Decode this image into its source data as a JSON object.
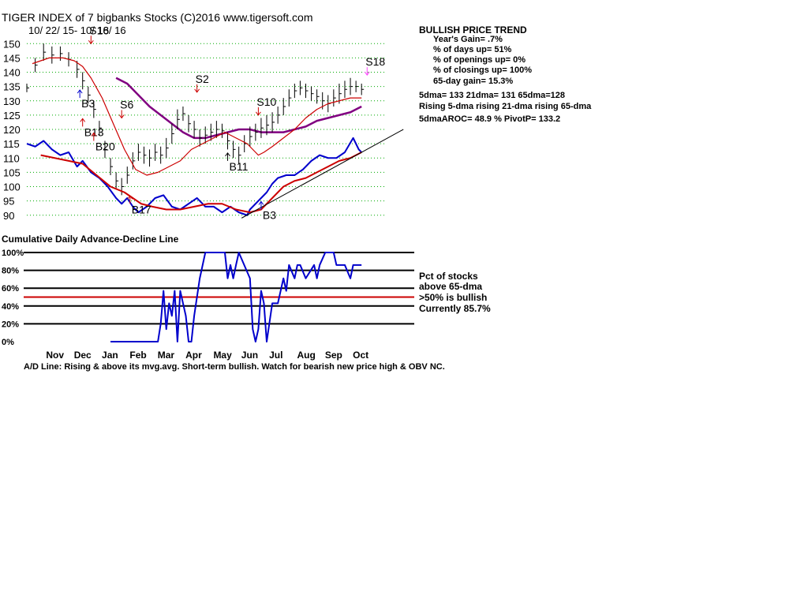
{
  "title": "TIGER INDEX of  7 bigbanks Stocks  (C)2016  www.tigersoft.com",
  "date_range": "10/ 22/ 15- 10/ 18/ 16",
  "trend": {
    "heading": "BULLISH PRICE TREND",
    "lines": [
      "Year's Gain= .7%",
      "% of days up= 51%",
      "% of openings up= 0%",
      "% of closings up= 100%",
      "65-day gain= 15.3%"
    ],
    "dma_line": "5dma= 133 21dma= 131 65dma=128",
    "rising_line": "Rising 5-dma rising 21-dma rising 65-dma",
    "aroc_line": "5dmaAROC= 48.9 %  PivotP= 133.2"
  },
  "lower_panel_title": "Cumulative Daily Advance-Decline Line",
  "lower_legend": [
    "Pct of stocks",
    "above 65-dma",
    ">50% is bullish",
    "Currently  85.7%"
  ],
  "footer": "A/D Line: Rising & above its mvg.avg. Short-term bullish. Watch for bearish new price high & OBV NC.",
  "colors": {
    "price": "#000000",
    "ma21": "#cc0000",
    "ma65": "#800080",
    "ad_line": "#0000cc",
    "ad_ma": "#cc0000",
    "grid": "#00aa00",
    "arrow_red": "#cc0000",
    "arrow_blue": "#0000cc",
    "arrow_black": "#000000",
    "arrow_pink": "#ff44ff",
    "bullish_line": "#cc0000"
  },
  "chart_data": [
    {
      "type": "line",
      "title": "TIGER INDEX of 7 bigbanks Stocks",
      "ylim": [
        88,
        152
      ],
      "yticks": [
        150,
        145,
        140,
        135,
        130,
        125,
        120,
        115,
        110,
        105,
        100,
        95,
        90
      ],
      "month_labels": [
        "Nov",
        "Dec",
        "Jan",
        "Feb",
        "Mar",
        "Apr",
        "May",
        "Jun",
        "Jul",
        "Aug",
        "Sep",
        "Oct"
      ],
      "month_pos": [
        1.0,
        2.0,
        3.0,
        4.0,
        5.0,
        6.0,
        7.0,
        8.0,
        9.0,
        10.0,
        11.0,
        12.0
      ],
      "xlim": [
        0.0,
        12.9
      ],
      "series": [
        {
          "name": "Price (daily high-low bars)",
          "kind": "bars",
          "x": [
            0.0,
            0.3,
            0.6,
            0.9,
            1.2,
            1.5,
            1.8,
            2.0,
            2.2,
            2.4,
            2.6,
            2.8,
            3.0,
            3.2,
            3.4,
            3.6,
            3.8,
            4.0,
            4.2,
            4.4,
            4.6,
            4.8,
            5.0,
            5.2,
            5.4,
            5.6,
            5.8,
            6.0,
            6.2,
            6.4,
            6.6,
            6.8,
            7.0,
            7.2,
            7.4,
            7.6,
            7.8,
            8.0,
            8.2,
            8.4,
            8.6,
            8.8,
            9.0,
            9.2,
            9.4,
            9.6,
            9.8,
            10.0,
            10.2,
            10.4,
            10.6,
            10.8,
            11.0,
            11.2,
            11.4,
            11.6,
            11.8,
            12.0
          ],
          "low": [
            133,
            140,
            144,
            143,
            144,
            142,
            138,
            134,
            129,
            124,
            118,
            110,
            104,
            99,
            97,
            101,
            106,
            109,
            108,
            107,
            109,
            108,
            110,
            115,
            120,
            123,
            119,
            117,
            114,
            115,
            116,
            117,
            117,
            113,
            110,
            108,
            112,
            114,
            116,
            117,
            118,
            119,
            122,
            125,
            128,
            131,
            132,
            131,
            130,
            129,
            127,
            126,
            128,
            129,
            131,
            132,
            133,
            132
          ],
          "high": [
            136,
            145,
            150,
            149,
            149,
            147,
            144,
            140,
            135,
            130,
            123,
            116,
            110,
            105,
            103,
            107,
            112,
            115,
            114,
            113,
            115,
            114,
            117,
            122,
            127,
            128,
            125,
            123,
            120,
            121,
            122,
            123,
            122,
            119,
            116,
            114,
            118,
            121,
            122,
            124,
            125,
            126,
            128,
            131,
            134,
            136,
            137,
            136,
            135,
            134,
            133,
            132,
            134,
            136,
            137,
            138,
            137,
            136
          ]
        },
        {
          "name": "21-dma",
          "kind": "line",
          "color_key": "ma21",
          "x": [
            0.2,
            0.8,
            1.3,
            1.7,
            2.0,
            2.3,
            2.7,
            3.1,
            3.5,
            3.9,
            4.3,
            4.7,
            5.1,
            5.5,
            5.9,
            6.3,
            6.7,
            7.1,
            7.5,
            7.9,
            8.1,
            8.3,
            8.5,
            8.8,
            9.2,
            9.6,
            10.0,
            10.4,
            10.8,
            11.2,
            11.6,
            12.0
          ],
          "y": [
            143,
            145,
            145,
            144,
            142,
            138,
            131,
            122,
            113,
            106,
            104,
            105,
            107,
            109,
            113,
            115,
            117,
            119,
            117,
            115,
            113,
            111,
            112,
            114,
            117,
            120,
            124,
            127,
            129,
            130,
            131,
            131
          ]
        },
        {
          "name": "65-dma",
          "kind": "line",
          "color_key": "ma65",
          "x": [
            3.2,
            3.6,
            4.0,
            4.4,
            4.8,
            5.2,
            5.6,
            6.0,
            6.4,
            6.8,
            7.2,
            7.6,
            8.0,
            8.4,
            8.8,
            9.2,
            9.6,
            10.0,
            10.4,
            10.8,
            11.2,
            11.6,
            12.0
          ],
          "y": [
            138,
            136,
            132,
            128,
            125,
            122,
            119,
            117,
            117,
            118,
            119,
            120,
            120,
            119,
            119,
            119,
            120,
            121,
            123,
            124,
            125,
            126,
            128
          ]
        }
      ],
      "signals": [
        {
          "label": "S16",
          "x": 2.3,
          "y": 150,
          "dir": "down",
          "color_key": "arrow_red"
        },
        {
          "label": "B3",
          "x": 1.9,
          "y": 131,
          "dir": "up",
          "color_key": "arrow_blue"
        },
        {
          "label": "B13",
          "x": 2.0,
          "y": 121,
          "dir": "up",
          "color_key": "arrow_red"
        },
        {
          "label": "B20",
          "x": 2.4,
          "y": 116,
          "dir": "up",
          "color_key": "arrow_red"
        },
        {
          "label": "S6",
          "x": 3.4,
          "y": 124,
          "dir": "down",
          "color_key": "arrow_red"
        },
        {
          "label": "B17",
          "x": 3.7,
          "y": 94,
          "dir": "up",
          "color_key": "arrow_red"
        },
        {
          "label": "S2",
          "x": 6.1,
          "y": 133,
          "dir": "down",
          "color_key": "arrow_red"
        },
        {
          "label": "B11",
          "x": 7.2,
          "y": 109,
          "dir": "up",
          "color_key": "arrow_black"
        },
        {
          "label": "S10",
          "x": 8.3,
          "y": 125,
          "dir": "down",
          "color_key": "arrow_red"
        },
        {
          "label": "B3",
          "x": 8.4,
          "y": 92,
          "dir": "up",
          "color_key": "arrow_blue"
        },
        {
          "label": "S18",
          "x": 12.2,
          "y": 139,
          "dir": "down",
          "color_key": "arrow_pink"
        }
      ]
    },
    {
      "type": "line",
      "title": "Cumulative Daily Advance-Decline Line",
      "series": [
        {
          "name": "A/D Line",
          "color_key": "ad_line",
          "x": [
            0.0,
            0.3,
            0.6,
            0.9,
            1.2,
            1.5,
            1.8,
            2.0,
            2.3,
            2.6,
            2.9,
            3.2,
            3.4,
            3.6,
            3.8,
            4.0,
            4.3,
            4.6,
            4.9,
            5.2,
            5.5,
            5.8,
            6.1,
            6.4,
            6.7,
            7.0,
            7.3,
            7.6,
            7.9,
            8.0,
            8.2,
            8.4,
            8.6,
            8.8,
            9.0,
            9.3,
            9.6,
            9.9,
            10.2,
            10.5,
            10.8,
            11.1,
            11.4,
            11.7,
            11.9,
            12.0
          ],
          "y": [
            115,
            114,
            116,
            113,
            111,
            112,
            107,
            109,
            105,
            103,
            100,
            96,
            94,
            96,
            93,
            91,
            93,
            96,
            97,
            93,
            92,
            94,
            96,
            93,
            93,
            91,
            93,
            91,
            90,
            92,
            94,
            96,
            98,
            101,
            103,
            104,
            104,
            106,
            109,
            111,
            110,
            110,
            112,
            117,
            113,
            112
          ]
        },
        {
          "name": "A/D moving average",
          "color_key": "ad_ma",
          "x": [
            0.5,
            1.0,
            1.5,
            2.0,
            2.5,
            3.0,
            3.5,
            3.8,
            4.1,
            4.5,
            5.0,
            5.5,
            6.0,
            6.5,
            7.0,
            7.5,
            8.0,
            8.4,
            8.8,
            9.2,
            9.6,
            10.0,
            10.4,
            10.8,
            11.2,
            11.6,
            12.0
          ],
          "y": [
            111,
            110,
            109,
            108,
            104,
            100,
            98,
            96,
            94,
            93,
            92,
            92,
            93,
            94,
            94,
            92,
            91,
            92,
            96,
            100,
            102,
            103,
            105,
            107,
            109,
            110,
            112
          ]
        }
      ],
      "trendline": {
        "x": [
          7.7,
          13.5
        ],
        "y": [
          89,
          120
        ]
      }
    },
    {
      "type": "line",
      "title": "Pct of stocks above 65-dma",
      "ylim": [
        0,
        100
      ],
      "yticks": [
        100,
        80,
        60,
        40,
        20,
        0
      ],
      "ytick_labels": [
        "100%",
        "80%",
        "60%",
        "40%",
        "20%",
        "0%"
      ],
      "bullish_level": 50,
      "series": [
        {
          "name": "Pct above 65-dma",
          "color_key": "ad_line",
          "x": [
            3.0,
            4.7,
            4.8,
            4.9,
            5.0,
            5.1,
            5.2,
            5.3,
            5.4,
            5.5,
            5.6,
            5.7,
            5.8,
            5.9,
            6.0,
            6.2,
            6.4,
            7.1,
            7.2,
            7.3,
            7.4,
            7.5,
            7.6,
            8.0,
            8.1,
            8.2,
            8.3,
            8.4,
            8.5,
            8.6,
            8.8,
            9.0,
            9.1,
            9.2,
            9.3,
            9.4,
            9.6,
            9.7,
            9.8,
            10.0,
            10.3,
            10.4,
            10.5,
            10.7,
            11.0,
            11.1,
            11.4,
            11.6,
            11.7,
            12.0
          ],
          "y": [
            0,
            0,
            20,
            57,
            14,
            43,
            29,
            57,
            0,
            57,
            43,
            29,
            0,
            0,
            29,
            71,
            100,
            100,
            71,
            86,
            71,
            86,
            100,
            71,
            14,
            0,
            14,
            57,
            43,
            0,
            43,
            43,
            57,
            71,
            57,
            86,
            71,
            86,
            86,
            71,
            86,
            71,
            86,
            100,
            100,
            86,
            86,
            71,
            86,
            86
          ]
        }
      ]
    }
  ]
}
